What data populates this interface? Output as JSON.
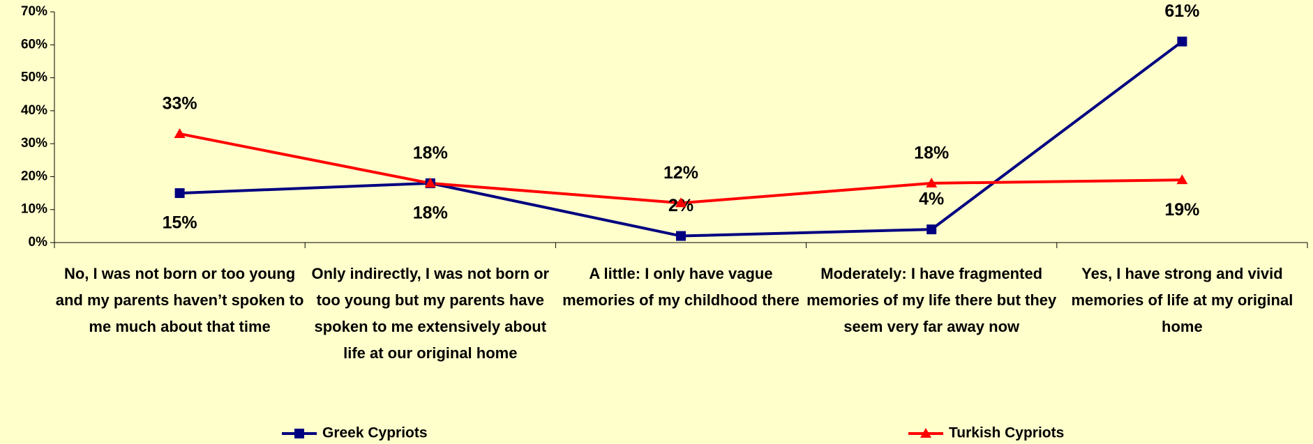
{
  "chart_data": {
    "type": "line",
    "categories": [
      "No, I was not born or too young and my parents haven’t spoken to me much about that time",
      "Only indirectly, I was not born or too young but my parents have spoken to me extensively about life at our original home",
      "A little: I only have vague memories of my childhood there",
      "Moderately: I have fragmented memories of my life there but they seem very far away now",
      "Yes, I have strong and vivid memories of life at my original home"
    ],
    "series": [
      {
        "name": "Greek Cypriots",
        "color": "#000080",
        "marker": "square",
        "values": [
          15,
          18,
          2,
          4,
          61
        ],
        "value_labels": [
          "15%",
          "18%",
          "2%",
          "4%",
          "61%"
        ]
      },
      {
        "name": "Turkish Cypriots",
        "color": "#ff0000",
        "marker": "triangle",
        "values": [
          33,
          18,
          12,
          18,
          19
        ],
        "value_labels": [
          "33%",
          "18%",
          "12%",
          "18%",
          "19%"
        ]
      }
    ],
    "ylim": [
      0,
      70
    ],
    "yticks": [
      {
        "value": 0,
        "label": "0%"
      },
      {
        "value": 10,
        "label": "10%"
      },
      {
        "value": 20,
        "label": "20%"
      },
      {
        "value": 30,
        "label": "30%"
      },
      {
        "value": 40,
        "label": "40%"
      },
      {
        "value": 50,
        "label": "50%"
      },
      {
        "value": 60,
        "label": "60%"
      },
      {
        "value": 70,
        "label": "70%"
      }
    ],
    "grid": false
  }
}
